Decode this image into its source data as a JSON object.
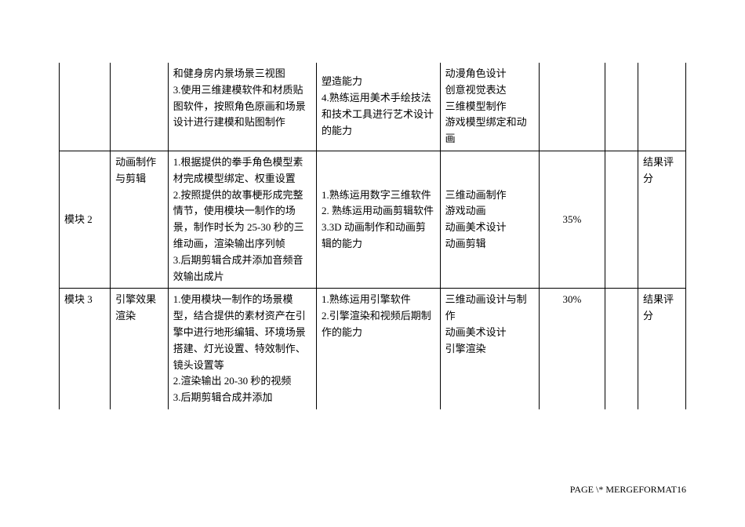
{
  "rows": [
    {
      "c0": "",
      "c1": "",
      "c2": "和健身房内景场景三视图\n3.使用三维建模软件和材质贴图软件，按照角色原画和场景设计进行建模和贴图制作",
      "c3": "塑造能力\n4.熟练运用美术手绘技法和技术工具进行艺术设计的能力",
      "c4": "动漫角色设计\n创意视觉表达\n三维模型制作\n游戏模型绑定和动画",
      "c5": "",
      "c6": "",
      "c7": ""
    },
    {
      "c0": "模块 2",
      "c1": "动画制作与剪辑",
      "c2": "1.根据提供的拳手角色模型素材完成模型绑定、权重设置\n2.按照提供的故事梗形成完整情节，使用模块一制作的场景，制作时长为 25-30 秒的三维动画，渲染输出序列帧\n3.后期剪辑合成并添加音频音效输出成片",
      "c3": "1.熟练运用数字三维软件\n2. 熟练运用动画剪辑软件\n3.3D 动画制作和动画剪辑的能力",
      "c4": "三维动画制作\n游戏动画\n动画美术设计\n动画剪辑",
      "c5": "35%",
      "c6": "",
      "c7": "结果评分"
    },
    {
      "c0": "模块 3",
      "c1": "引擎效果渲染",
      "c2": "1.使用模块一制作的场景模型，结合提供的素材资产在引擎中进行地形编辑、环境场景搭建、灯光设置、特效制作、镜头设置等\n2.渲染输出 20-30 秒的视频\n3.后期剪辑合成并添加",
      "c3": "1.熟练运用引擎软件\n2.引擎渲染和视频后期制作的能力",
      "c4": "三维动画设计与制作\n动画美术设计\n引擎渲染",
      "c5": "30%",
      "c6": "",
      "c7": "结果评分"
    }
  ],
  "footer": "PAGE  \\* MERGEFORMAT16"
}
